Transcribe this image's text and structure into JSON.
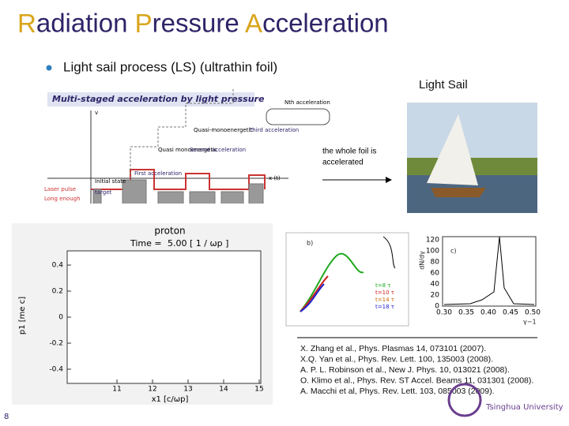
{
  "title": "Radiation Pressure Acceleration",
  "bullet": "Light sail process (LS) (ultrathin foil)",
  "light_sail": {
    "label": "Light Sail",
    "caption_lines": [
      "the whole foil is",
      "accelerated"
    ]
  },
  "figure_multistage": {
    "title": "Multi-staged acceleration by light pressure",
    "labels": [
      "Initial state",
      "First acceleration",
      "Quasi monoenergetic",
      "Second acceleration",
      "Quasi-monoenergetic",
      "Third acceleration",
      "Nth acceleration",
      "target",
      "Laser pulse",
      "Long enough",
      "x (t)",
      "v"
    ]
  },
  "figure_proton": {
    "title": "proton",
    "time_label": "Time =",
    "time_value": "5.00 [ 1 / ωp ]",
    "yticks": [
      "0.4",
      "0.2",
      "0",
      "-0.2",
      "-0.4"
    ],
    "xticks": [
      "11",
      "12",
      "13",
      "14",
      "15"
    ],
    "ylabel": "p1 [me c]",
    "xlabel": "x1 [c/ωp]"
  },
  "figure_b": {
    "panel": "b)",
    "legend": [
      "t=8 τ",
      "t=10 τ",
      "t=14 τ",
      "t=18 τ"
    ]
  },
  "figure_c": {
    "panel": "c)",
    "ylabel": "dN/dγ",
    "xlabel": "γ−1",
    "yticks": [
      "120",
      "100",
      "80",
      "60",
      "40",
      "20",
      "0"
    ],
    "xticks": [
      "0.30",
      "0.35",
      "0.40",
      "0.45",
      "0.50"
    ]
  },
  "references": [
    "X. Zhang et al., Phys. Plasmas 14, 073101 (2007).",
    "X.Q. Yan et al., Phys. Rev. Lett. 100, 135003 (2008).",
    "A. P. L. Robinson et al., New J. Phys. 10, 013021 (2008).",
    "O. Klimo et al., Phys. Rev. ST Accel. Beams 11, 031301 (2008).",
    "A. Macchi et al, Phys. Rev. Lett. 103, 085003 (2009)."
  ],
  "page_number": "8",
  "logo": "Tsinghua University"
}
